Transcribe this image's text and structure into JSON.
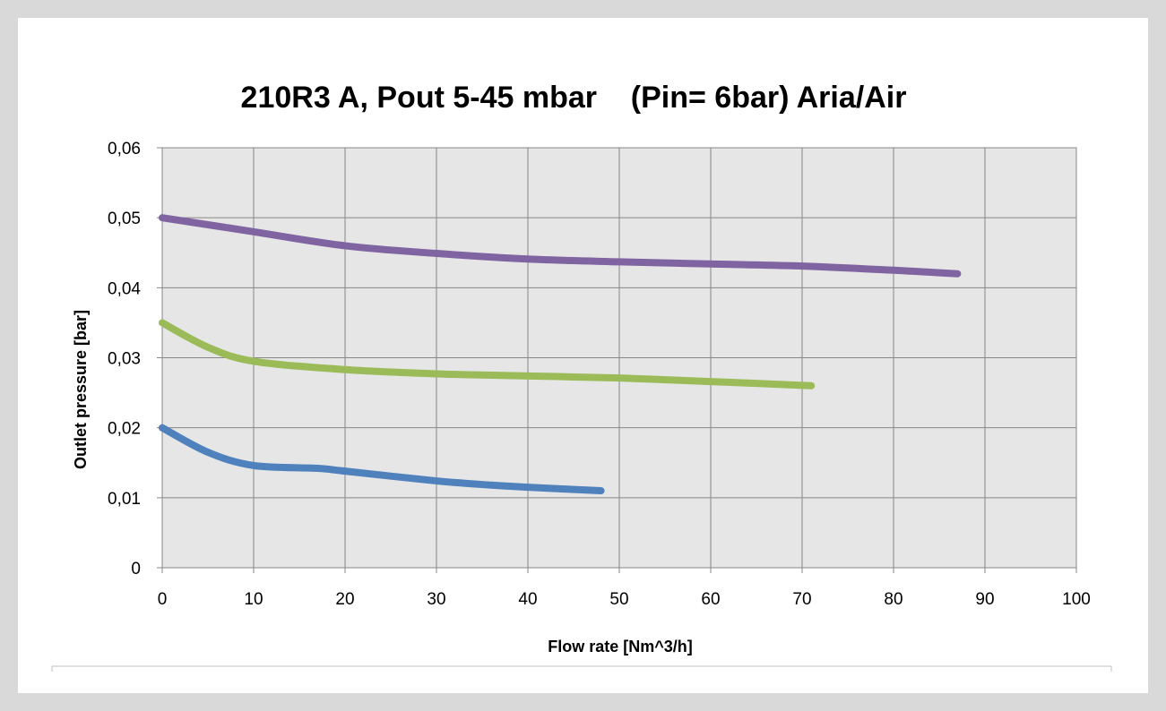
{
  "chart_data": {
    "type": "line",
    "title": "210R3 A, Pout 5-45 mbar    (Pin= 6bar) Aria/Air",
    "xlabel": "Flow rate [Nm^3/h]",
    "ylabel": "Outlet pressure [bar]",
    "xlim": [
      0,
      100
    ],
    "ylim": [
      0,
      0.06
    ],
    "x_ticks": [
      0,
      10,
      20,
      30,
      40,
      50,
      60,
      70,
      80,
      90,
      100
    ],
    "x_tick_labels": [
      "0",
      "10",
      "20",
      "30",
      "40",
      "50",
      "60",
      "70",
      "80",
      "90",
      "100"
    ],
    "y_ticks": [
      0,
      0.01,
      0.02,
      0.03,
      0.04,
      0.05,
      0.06
    ],
    "y_tick_labels": [
      "0",
      "0,01",
      "0,02",
      "0,03",
      "0,04",
      "0,05",
      "0,06"
    ],
    "grid": true,
    "legend": "none",
    "plot_background": "#e6e6e6",
    "series": [
      {
        "color": "#8064a2",
        "x": [
          0,
          10,
          20,
          30,
          40,
          50,
          60,
          70,
          80,
          87
        ],
        "y": [
          0.05,
          0.048,
          0.046,
          0.0449,
          0.0441,
          0.0437,
          0.0434,
          0.0431,
          0.0425,
          0.042
        ]
      },
      {
        "color": "#9bbb59",
        "x": [
          0,
          5,
          10,
          20,
          30,
          40,
          50,
          60,
          71
        ],
        "y": [
          0.035,
          0.0315,
          0.0295,
          0.0283,
          0.0277,
          0.0274,
          0.0271,
          0.0266,
          0.026
        ]
      },
      {
        "color": "#4f81bd",
        "x": [
          0,
          5,
          10,
          17,
          20,
          30,
          36,
          40,
          48
        ],
        "y": [
          0.02,
          0.0165,
          0.0146,
          0.0142,
          0.0138,
          0.0124,
          0.0118,
          0.0115,
          0.011
        ]
      }
    ]
  }
}
